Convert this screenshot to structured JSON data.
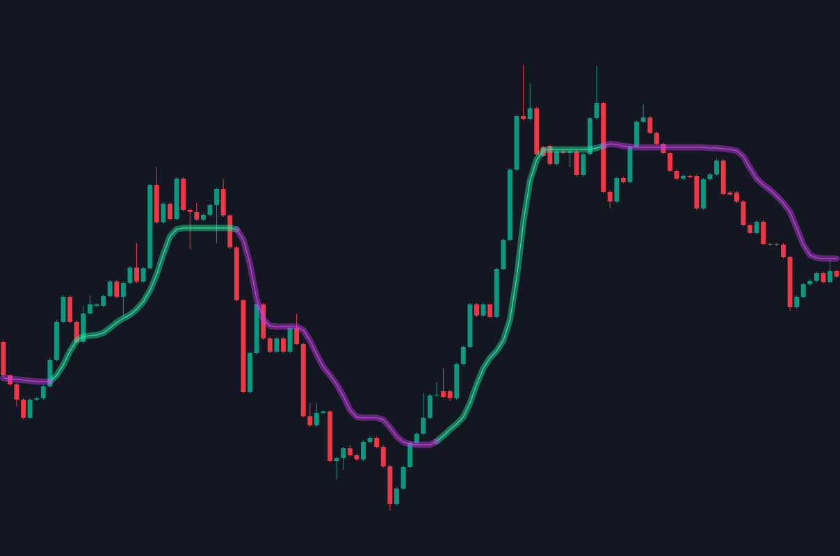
{
  "chart_data": {
    "type": "candlestick",
    "up_color": "#089981",
    "down_color": "#f23645",
    "background": "#131722",
    "ylim": [
      0,
      800
    ],
    "open": [
      308,
      260,
      247,
      225,
      199,
      225,
      227,
      244,
      282,
      337,
      373,
      337,
      308,
      349,
      360,
      360,
      374,
      395,
      373,
      393,
      415,
      395,
      414,
      534,
      480,
      507,
      485,
      543,
      498,
      495,
      484,
      491,
      505,
      528,
      490,
      444,
      368,
      236,
      292,
      362,
      313,
      294,
      313,
      294,
      328,
      305,
      201,
      188,
      206,
      208,
      137,
      141,
      155,
      145,
      139,
      164,
      170,
      157,
      129,
      75,
      97,
      128,
      163,
      176,
      199,
      231,
      237,
      237,
      227,
      276,
      301,
      362,
      346,
      362,
      344,
      413,
      455,
      556,
      633,
      629,
      644,
      588,
      590,
      564,
      582,
      580,
      582,
      548,
      578,
      630,
      652,
      524,
      510,
      544,
      538,
      589,
      625,
      631,
      609,
      593,
      580,
      554,
      543,
      547,
      547,
      500,
      542,
      549,
      569,
      523,
      523,
      510,
      476,
      465,
      481,
      449,
      449,
      448,
      430,
      358,
      373,
      391,
      396,
      407,
      394,
      410
    ],
    "high": [
      310,
      262,
      249,
      227,
      227,
      229,
      246,
      285,
      340,
      375,
      375,
      339,
      360,
      375,
      364,
      376,
      397,
      397,
      395,
      417,
      450,
      416,
      536,
      560,
      509,
      509,
      545,
      545,
      500,
      508,
      493,
      507,
      530,
      542,
      492,
      446,
      370,
      294,
      364,
      364,
      315,
      315,
      315,
      330,
      348,
      307,
      220,
      220,
      210,
      210,
      143,
      157,
      160,
      147,
      166,
      172,
      172,
      159,
      131,
      99,
      130,
      165,
      178,
      235,
      233,
      250,
      270,
      239,
      278,
      303,
      364,
      364,
      364,
      364,
      415,
      457,
      558,
      635,
      707,
      680,
      646,
      590,
      592,
      584,
      584,
      584,
      584,
      580,
      632,
      705,
      654,
      526,
      546,
      546,
      591,
      627,
      650,
      633,
      611,
      595,
      582,
      556,
      549,
      549,
      549,
      544,
      551,
      571,
      571,
      525,
      525,
      512,
      478,
      483,
      483,
      451,
      451,
      450,
      432,
      375,
      393,
      398,
      409,
      409,
      425,
      412
    ],
    "low": [
      258,
      245,
      215,
      197,
      197,
      223,
      225,
      242,
      280,
      335,
      335,
      306,
      306,
      347,
      358,
      358,
      372,
      371,
      345,
      391,
      393,
      393,
      412,
      478,
      478,
      483,
      483,
      496,
      442,
      482,
      482,
      489,
      450,
      488,
      442,
      366,
      234,
      234,
      290,
      311,
      292,
      292,
      292,
      292,
      303,
      199,
      186,
      186,
      204,
      135,
      110,
      124,
      143,
      137,
      137,
      162,
      155,
      127,
      65,
      73,
      95,
      126,
      161,
      174,
      197,
      229,
      227,
      223,
      225,
      274,
      299,
      344,
      344,
      342,
      342,
      411,
      453,
      554,
      627,
      627,
      576,
      574,
      562,
      562,
      578,
      560,
      546,
      546,
      576,
      628,
      522,
      500,
      508,
      536,
      536,
      587,
      623,
      607,
      591,
      578,
      552,
      541,
      541,
      543,
      498,
      498,
      540,
      547,
      519,
      518,
      508,
      474,
      463,
      463,
      447,
      446,
      446,
      428,
      353,
      356,
      371,
      389,
      394,
      392,
      392,
      400
    ],
    "close": [
      260,
      247,
      225,
      199,
      225,
      227,
      244,
      282,
      337,
      373,
      337,
      308,
      349,
      362,
      362,
      374,
      395,
      373,
      393,
      415,
      395,
      414,
      534,
      480,
      507,
      485,
      543,
      498,
      495,
      484,
      491,
      505,
      528,
      490,
      444,
      368,
      236,
      292,
      362,
      313,
      294,
      313,
      294,
      328,
      305,
      201,
      188,
      206,
      208,
      137,
      141,
      155,
      145,
      139,
      164,
      170,
      157,
      129,
      75,
      97,
      128,
      163,
      176,
      199,
      231,
      232,
      229,
      227,
      276,
      301,
      362,
      346,
      362,
      344,
      413,
      455,
      556,
      633,
      629,
      644,
      578,
      576,
      564,
      582,
      580,
      582,
      548,
      578,
      630,
      652,
      524,
      510,
      544,
      538,
      589,
      625,
      631,
      609,
      593,
      580,
      554,
      543,
      547,
      545,
      500,
      542,
      549,
      569,
      521,
      520,
      510,
      476,
      465,
      481,
      449,
      448,
      448,
      430,
      358,
      373,
      391,
      396,
      407,
      394,
      410,
      402
    ],
    "series": [
      {
        "color": "#26e6a0",
        "values": [
          null,
          null,
          null,
          null,
          null,
          null,
          null,
          251,
          260,
          275,
          295,
          310,
          316,
          317,
          318,
          321,
          328,
          336,
          342,
          347,
          355,
          366,
          382,
          405,
          434,
          460,
          470,
          472,
          472,
          472,
          472,
          472,
          472,
          472,
          472,
          470,
          null,
          null,
          null,
          null,
          null,
          null,
          null,
          null,
          null,
          null,
          null,
          null,
          null,
          null,
          null,
          null,
          null,
          null,
          null,
          null,
          null,
          null,
          null,
          null,
          null,
          null,
          null,
          null,
          null,
          165,
          173,
          182,
          190,
          200,
          220,
          247,
          270,
          285,
          295,
          310,
          340,
          400,
          480,
          540,
          570,
          584,
          585,
          585,
          585,
          585,
          585,
          585,
          585,
          587,
          590,
          null,
          null,
          null,
          null,
          null,
          null,
          null,
          null,
          null,
          null,
          null,
          null,
          null,
          null,
          null,
          null,
          null,
          null,
          null,
          null,
          null,
          null,
          null,
          null,
          null,
          null,
          null,
          null,
          null,
          null,
          null,
          null,
          null,
          null,
          null
        ]
      },
      {
        "color": "#c13fe0",
        "values": [
          256,
          255,
          254,
          253,
          252,
          251,
          251,
          251,
          null,
          null,
          null,
          null,
          null,
          null,
          null,
          null,
          null,
          null,
          null,
          null,
          null,
          null,
          null,
          null,
          null,
          null,
          null,
          null,
          null,
          null,
          null,
          null,
          null,
          null,
          null,
          470,
          455,
          420,
          370,
          340,
          331,
          330,
          330,
          330,
          330,
          325,
          310,
          290,
          272,
          260,
          247,
          230,
          210,
          200,
          199,
          199,
          199,
          196,
          185,
          172,
          164,
          161,
          160,
          160,
          160,
          165,
          null,
          null,
          null,
          null,
          null,
          null,
          null,
          null,
          null,
          null,
          null,
          null,
          null,
          null,
          null,
          null,
          null,
          null,
          null,
          null,
          null,
          null,
          null,
          null,
          590,
          593,
          592,
          590,
          589,
          588,
          588,
          588,
          588,
          588,
          588,
          588,
          588,
          588,
          588,
          588,
          587,
          587,
          586,
          585,
          583,
          575,
          558,
          543,
          534,
          527,
          518,
          508,
          495,
          472,
          448,
          433,
          429,
          428,
          428,
          428
        ]
      }
    ]
  }
}
